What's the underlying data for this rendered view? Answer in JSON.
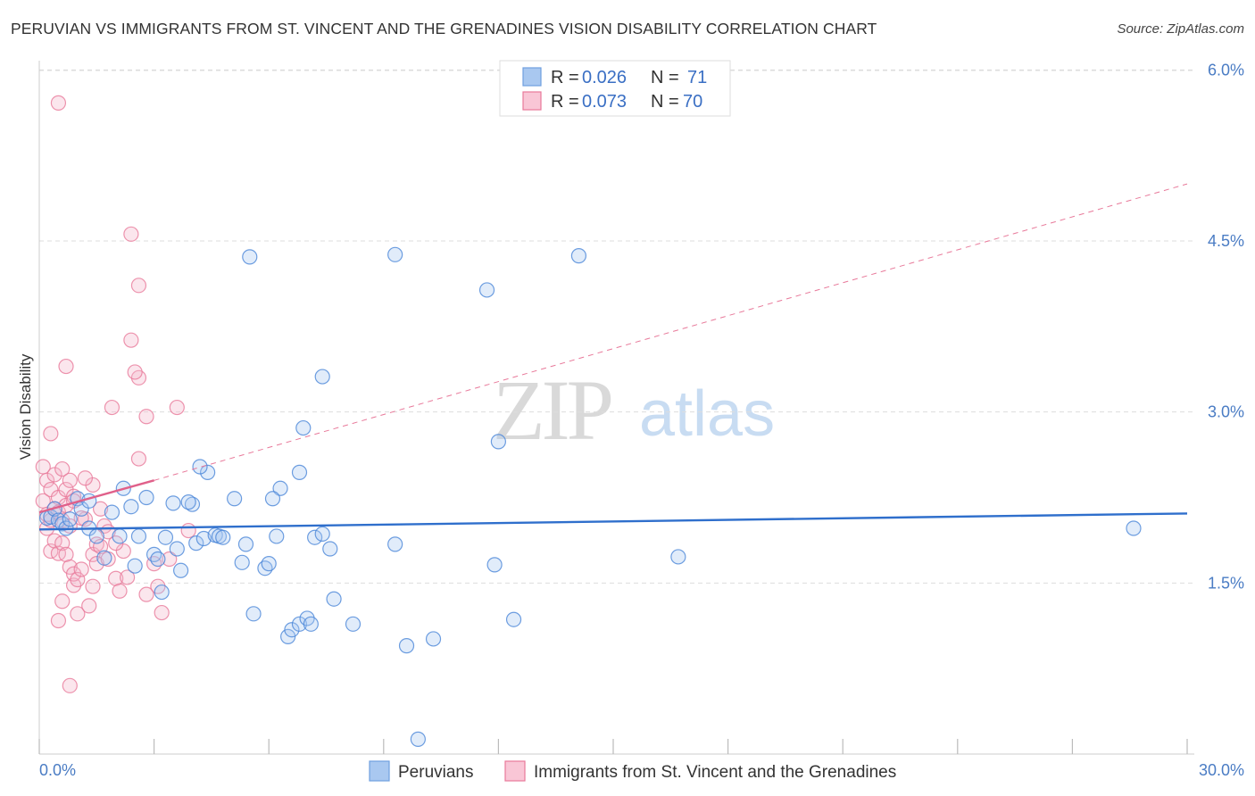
{
  "title": "PERUVIAN VS IMMIGRANTS FROM ST. VINCENT AND THE GRENADINES VISION DISABILITY CORRELATION CHART",
  "source": "Source: ZipAtlas.com",
  "watermark": {
    "zip": "ZIP",
    "atlas": "atlas"
  },
  "colors": {
    "blue": "#4a86d8",
    "blue_fill": "#a9c8f0",
    "pink": "#e8799a",
    "pink_fill": "#f4b8ca",
    "axis_text": "#4a7cc4",
    "grid": "#dddddd"
  },
  "stats": [
    {
      "r_label": "R =",
      "r_value": "0.026",
      "n_label": "N =",
      "n_value": "71"
    },
    {
      "r_label": "R =",
      "r_value": "0.073",
      "n_label": "N =",
      "n_value": "70"
    }
  ],
  "chart_data": {
    "type": "scatter",
    "title": "PERUVIAN VS IMMIGRANTS FROM ST. VINCENT AND THE GRENADINES VISION DISABILITY CORRELATION CHART",
    "xlabel": "",
    "ylabel": "Vision Disability",
    "xlim": [
      0,
      30
    ],
    "ylim": [
      0,
      6.3
    ],
    "x_tick_labels": [
      "0.0%",
      "30.0%"
    ],
    "y_ticks": [
      {
        "value": 1.5,
        "label": "1.5%"
      },
      {
        "value": 3.0,
        "label": "3.0%"
      },
      {
        "value": 4.5,
        "label": "4.5%"
      },
      {
        "value": 6.0,
        "label": "6.0%"
      }
    ],
    "grid": true,
    "legend_position": "bottom",
    "series": [
      {
        "name": "Peruvians",
        "color": "#4a86d8",
        "trend": {
          "x": [
            0,
            30
          ],
          "y": [
            1.97,
            2.11
          ],
          "style": "solid"
        },
        "points": [
          [
            0.2,
            2.07
          ],
          [
            0.3,
            2.08
          ],
          [
            0.4,
            2.15
          ],
          [
            0.5,
            2.05
          ],
          [
            0.6,
            2.02
          ],
          [
            0.7,
            1.98
          ],
          [
            0.8,
            2.06
          ],
          [
            1.0,
            2.24
          ],
          [
            1.1,
            2.15
          ],
          [
            1.3,
            2.22
          ],
          [
            1.3,
            1.98
          ],
          [
            1.5,
            1.91
          ],
          [
            1.7,
            1.72
          ],
          [
            1.9,
            2.12
          ],
          [
            2.1,
            1.91
          ],
          [
            2.2,
            2.33
          ],
          [
            2.4,
            2.17
          ],
          [
            2.5,
            1.65
          ],
          [
            2.6,
            1.91
          ],
          [
            2.8,
            2.25
          ],
          [
            3.0,
            1.75
          ],
          [
            3.1,
            1.71
          ],
          [
            3.2,
            1.42
          ],
          [
            3.3,
            1.9
          ],
          [
            3.5,
            2.2
          ],
          [
            3.6,
            1.8
          ],
          [
            3.7,
            1.61
          ],
          [
            4.0,
            2.19
          ],
          [
            4.1,
            1.85
          ],
          [
            4.3,
            1.89
          ],
          [
            4.4,
            2.47
          ],
          [
            4.6,
            1.92
          ],
          [
            4.7,
            1.91
          ],
          [
            4.8,
            1.9
          ],
          [
            5.1,
            2.24
          ],
          [
            5.3,
            1.68
          ],
          [
            5.4,
            1.84
          ],
          [
            5.6,
            1.23
          ],
          [
            5.9,
            1.63
          ],
          [
            6.0,
            1.67
          ],
          [
            6.2,
            1.91
          ],
          [
            6.3,
            2.33
          ],
          [
            6.5,
            1.03
          ],
          [
            6.6,
            1.09
          ],
          [
            6.8,
            1.14
          ],
          [
            7.0,
            1.19
          ],
          [
            7.1,
            1.14
          ],
          [
            7.2,
            1.9
          ],
          [
            7.4,
            1.93
          ],
          [
            7.6,
            1.8
          ],
          [
            7.7,
            1.36
          ],
          [
            8.2,
            1.14
          ],
          [
            9.3,
            1.84
          ],
          [
            9.6,
            0.95
          ],
          [
            9.9,
            0.13
          ],
          [
            10.3,
            1.01
          ],
          [
            11.9,
            1.66
          ],
          [
            12.4,
            1.18
          ],
          [
            6.8,
            2.47
          ],
          [
            6.1,
            2.24
          ],
          [
            4.2,
            2.52
          ],
          [
            3.9,
            2.21
          ],
          [
            6.9,
            2.86
          ],
          [
            7.4,
            3.31
          ],
          [
            5.5,
            4.36
          ],
          [
            9.3,
            4.38
          ],
          [
            11.7,
            4.07
          ],
          [
            14.1,
            4.37
          ],
          [
            12.0,
            2.74
          ],
          [
            16.7,
            1.73
          ],
          [
            28.6,
            1.98
          ]
        ]
      },
      {
        "name": "Immigrants from St. Vincent and the Grenadines",
        "color": "#e8799a",
        "trend": {
          "x": [
            0,
            3.0
          ],
          "y": [
            2.12,
            2.4
          ],
          "style": "solid",
          "extended": {
            "x": [
              3.0,
              30
            ],
            "y": [
              2.4,
              5.0
            ],
            "style": "dashed"
          }
        },
        "points": [
          [
            0.1,
            2.52
          ],
          [
            0.1,
            2.22
          ],
          [
            0.2,
            2.4
          ],
          [
            0.2,
            2.1
          ],
          [
            0.2,
            1.98
          ],
          [
            0.3,
            2.81
          ],
          [
            0.3,
            2.32
          ],
          [
            0.3,
            2.05
          ],
          [
            0.3,
            1.78
          ],
          [
            0.4,
            2.45
          ],
          [
            0.4,
            2.15
          ],
          [
            0.4,
            1.87
          ],
          [
            0.5,
            2.12
          ],
          [
            0.5,
            2.25
          ],
          [
            0.5,
            1.76
          ],
          [
            0.5,
            1.17
          ],
          [
            0.5,
            5.71
          ],
          [
            0.6,
            2.5
          ],
          [
            0.6,
            2.05
          ],
          [
            0.6,
            1.85
          ],
          [
            0.7,
            3.4
          ],
          [
            0.7,
            2.32
          ],
          [
            0.7,
            2.18
          ],
          [
            0.7,
            1.75
          ],
          [
            0.8,
            2.4
          ],
          [
            0.8,
            2.0
          ],
          [
            0.8,
            1.64
          ],
          [
            0.8,
            0.6
          ],
          [
            0.9,
            1.48
          ],
          [
            0.9,
            1.58
          ],
          [
            0.9,
            2.26
          ],
          [
            1.0,
            1.23
          ],
          [
            1.0,
            1.53
          ],
          [
            1.1,
            1.62
          ],
          [
            1.2,
            2.06
          ],
          [
            1.4,
            1.75
          ],
          [
            1.4,
            1.47
          ],
          [
            1.5,
            1.67
          ],
          [
            1.5,
            1.84
          ],
          [
            1.6,
            1.82
          ],
          [
            1.7,
            2.0
          ],
          [
            1.8,
            1.71
          ],
          [
            1.9,
            3.04
          ],
          [
            2.0,
            1.54
          ],
          [
            2.1,
            1.43
          ],
          [
            2.2,
            1.78
          ],
          [
            2.4,
            4.56
          ],
          [
            2.4,
            3.63
          ],
          [
            2.6,
            3.3
          ],
          [
            2.8,
            2.96
          ],
          [
            2.8,
            1.4
          ],
          [
            3.0,
            1.67
          ],
          [
            3.1,
            1.47
          ],
          [
            3.2,
            1.24
          ],
          [
            3.4,
            1.71
          ],
          [
            3.6,
            3.04
          ],
          [
            3.9,
            1.96
          ],
          [
            2.6,
            4.11
          ],
          [
            2.5,
            3.35
          ],
          [
            2.6,
            2.59
          ],
          [
            1.4,
            2.36
          ],
          [
            1.2,
            2.42
          ],
          [
            1.1,
            2.07
          ],
          [
            0.9,
            2.22
          ],
          [
            1.6,
            2.15
          ],
          [
            1.8,
            1.95
          ],
          [
            1.3,
            1.3
          ],
          [
            2.0,
            1.85
          ],
          [
            2.3,
            1.55
          ],
          [
            0.6,
            1.34
          ]
        ]
      }
    ]
  }
}
